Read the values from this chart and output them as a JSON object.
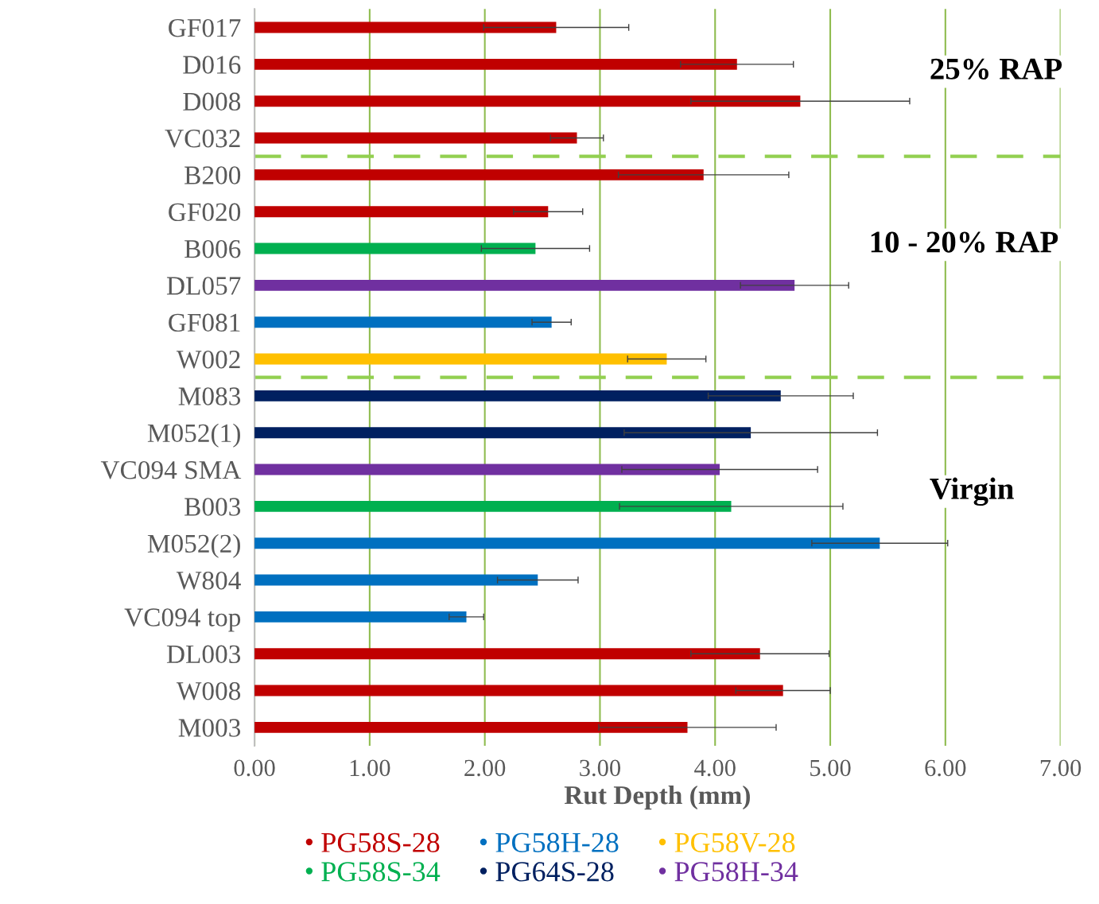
{
  "chart_data": {
    "type": "bar",
    "orientation": "horizontal",
    "xlabel": "Rut Depth (mm)",
    "categories": [
      "GF017",
      "D016",
      "D008",
      "VC032",
      "B200",
      "GF020",
      "B006",
      "DL057",
      "GF081",
      "W002",
      "M083",
      "M052(1)",
      "VC094 SMA",
      "B003",
      "M052(2)",
      "W804",
      "VC094 top",
      "DL003",
      "W008",
      "M003"
    ],
    "series": [
      {
        "name": "PG58S-28",
        "color": "#c00000",
        "values": [
          2.62,
          4.19,
          4.74,
          2.8,
          3.9,
          2.55,
          null,
          null,
          null,
          null,
          null,
          null,
          null,
          null,
          null,
          null,
          null,
          4.39,
          4.59,
          3.76
        ],
        "errors": [
          0.63,
          0.49,
          0.95,
          0.23,
          0.74,
          0.3,
          null,
          null,
          null,
          null,
          null,
          null,
          null,
          null,
          null,
          null,
          null,
          0.6,
          0.41,
          0.77
        ]
      },
      {
        "name": "PG58H-28",
        "color": "#0070c0",
        "values": [
          null,
          null,
          null,
          null,
          null,
          null,
          null,
          null,
          2.58,
          null,
          null,
          null,
          null,
          null,
          5.43,
          2.46,
          1.84,
          null,
          null,
          null
        ],
        "errors": [
          null,
          null,
          null,
          null,
          null,
          null,
          null,
          null,
          0.17,
          null,
          null,
          null,
          null,
          null,
          0.59,
          0.35,
          0.15,
          null,
          null,
          null
        ]
      },
      {
        "name": "PG58V-28",
        "color": "#ffc000",
        "values": [
          null,
          null,
          null,
          null,
          null,
          null,
          null,
          null,
          null,
          3.58,
          null,
          null,
          null,
          null,
          null,
          null,
          null,
          null,
          null,
          null
        ],
        "errors": [
          null,
          null,
          null,
          null,
          null,
          null,
          null,
          null,
          null,
          0.34,
          null,
          null,
          null,
          null,
          null,
          null,
          null,
          null,
          null,
          null
        ]
      },
      {
        "name": "PG58S-34",
        "color": "#00b050",
        "values": [
          null,
          null,
          null,
          null,
          null,
          null,
          2.44,
          null,
          null,
          null,
          null,
          null,
          null,
          4.14,
          null,
          null,
          null,
          null,
          null,
          null
        ],
        "errors": [
          null,
          null,
          null,
          null,
          null,
          null,
          0.47,
          null,
          null,
          null,
          null,
          null,
          null,
          0.97,
          null,
          null,
          null,
          null,
          null,
          null
        ]
      },
      {
        "name": "PG64S-28",
        "color": "#002060",
        "values": [
          null,
          null,
          null,
          null,
          null,
          null,
          null,
          null,
          null,
          null,
          4.57,
          4.31,
          null,
          null,
          null,
          null,
          null,
          null,
          null,
          null
        ],
        "errors": [
          null,
          null,
          null,
          null,
          null,
          null,
          null,
          null,
          null,
          null,
          0.63,
          1.1,
          null,
          null,
          null,
          null,
          null,
          null,
          null,
          null
        ]
      },
      {
        "name": "PG58H-34",
        "color": "#7030a0",
        "values": [
          null,
          null,
          null,
          null,
          null,
          null,
          null,
          4.69,
          null,
          null,
          null,
          null,
          4.04,
          null,
          null,
          null,
          null,
          null,
          null,
          null
        ],
        "errors": [
          null,
          null,
          null,
          null,
          null,
          null,
          null,
          0.47,
          null,
          null,
          null,
          null,
          0.85,
          null,
          null,
          null,
          null,
          null,
          null,
          null
        ]
      }
    ],
    "xlim": [
      0,
      7
    ],
    "xticks": [
      {
        "value": 0,
        "label": "0.00"
      },
      {
        "value": 1,
        "label": "1.00"
      },
      {
        "value": 2,
        "label": "2.00"
      },
      {
        "value": 3,
        "label": "3.00"
      },
      {
        "value": 4,
        "label": "4.00"
      },
      {
        "value": 5,
        "label": "5.00"
      },
      {
        "value": 6,
        "label": "6.00"
      },
      {
        "value": 7,
        "label": "7.00"
      }
    ],
    "grid": "x",
    "legend": "bottom",
    "marker": "circle",
    "annotations": [
      "25% RAP",
      "10 - 20% RAP",
      "Virgin"
    ]
  }
}
